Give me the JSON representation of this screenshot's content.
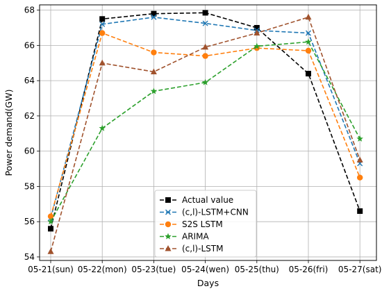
{
  "chart_data": {
    "type": "line",
    "categories": [
      "05-21(sun)",
      "05-22(mon)",
      "05-23(tue)",
      "05-24(wen)",
      "05-25(thu)",
      "05-26(fri)",
      "05-27(sat)"
    ],
    "xlabel": "Days",
    "ylabel": "Power demand(GW)",
    "ylim": [
      53.8,
      68.3
    ],
    "yticks": [
      "54",
      "56",
      "58",
      "60",
      "62",
      "64",
      "66",
      "68"
    ],
    "grid": true,
    "legend_position": "lower-center",
    "series": [
      {
        "name": "Actual value",
        "values": [
          55.6,
          67.5,
          67.8,
          67.85,
          67.0,
          64.4,
          56.6
        ],
        "color": "#000000",
        "marker": "square"
      },
      {
        "name": "(c,l)-LSTM+CNN",
        "values": [
          56.2,
          67.2,
          67.6,
          67.25,
          66.85,
          66.7,
          59.3
        ],
        "color": "#1f77b4",
        "marker": "x"
      },
      {
        "name": "S2S LSTM",
        "values": [
          56.3,
          66.7,
          65.6,
          65.4,
          65.85,
          65.7,
          58.5
        ],
        "color": "#ff7f0e",
        "marker": "circle"
      },
      {
        "name": "ARIMA",
        "values": [
          56.0,
          61.3,
          63.4,
          63.9,
          65.95,
          66.2,
          60.7
        ],
        "color": "#2ca02c",
        "marker": "star"
      },
      {
        "name": "(c,l)-LSTM",
        "values": [
          54.3,
          65.0,
          64.5,
          65.9,
          66.7,
          67.6,
          59.5
        ],
        "color": "#a0522d",
        "marker": "triangle"
      }
    ]
  }
}
